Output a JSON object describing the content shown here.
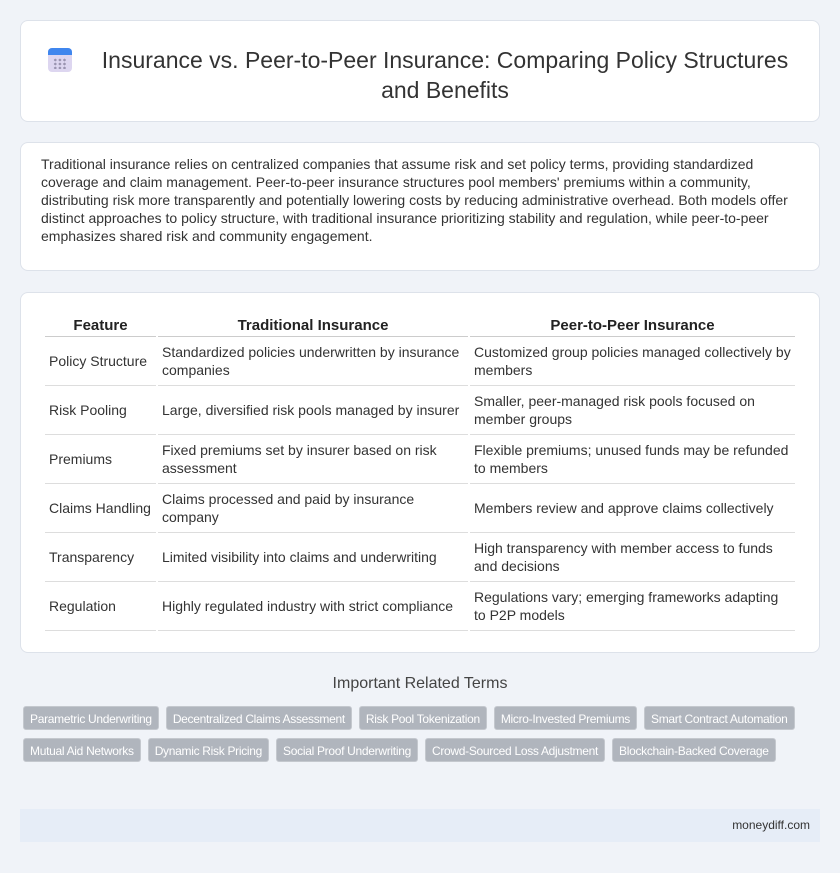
{
  "header": {
    "title": "Insurance vs. Peer-to-Peer Insurance: Comparing Policy Structures and Benefits",
    "icon": "calendar-icon"
  },
  "intro": "Traditional insurance relies on centralized companies that assume risk and set policy terms, providing standardized coverage and claim management. Peer-to-peer insurance structures pool members' premiums within a community, distributing risk more transparently and potentially lowering costs by reducing administrative overhead. Both models offer distinct approaches to policy structure, with traditional insurance prioritizing stability and regulation, while peer-to-peer emphasizes shared risk and community engagement.",
  "table": {
    "headers": [
      "Feature",
      "Traditional Insurance",
      "Peer-to-Peer Insurance"
    ],
    "rows": [
      [
        "Policy Structure",
        "Standardized policies underwritten by insurance companies",
        "Customized group policies managed collectively by members"
      ],
      [
        "Risk Pooling",
        "Large, diversified risk pools managed by insurer",
        "Smaller, peer-managed risk pools focused on member groups"
      ],
      [
        "Premiums",
        "Fixed premiums set by insurer based on risk assessment",
        "Flexible premiums; unused funds may be refunded to members"
      ],
      [
        "Claims Handling",
        "Claims processed and paid by insurance company",
        "Members review and approve claims collectively"
      ],
      [
        "Transparency",
        "Limited visibility into claims and underwriting",
        "High transparency with member access to funds and decisions"
      ],
      [
        "Regulation",
        "Highly regulated industry with strict compliance",
        "Regulations vary; emerging frameworks adapting to P2P models"
      ]
    ]
  },
  "terms": {
    "title": "Important Related Terms",
    "items": [
      "Parametric Underwriting",
      "Decentralized Claims Assessment",
      "Risk Pool Tokenization",
      "Micro-Invested Premiums",
      "Smart Contract Automation",
      "Mutual Aid Networks",
      "Dynamic Risk Pricing",
      "Social Proof Underwriting",
      "Crowd-Sourced Loss Adjustment",
      "Blockchain-Backed Coverage"
    ]
  },
  "footer": "moneydiff.com"
}
